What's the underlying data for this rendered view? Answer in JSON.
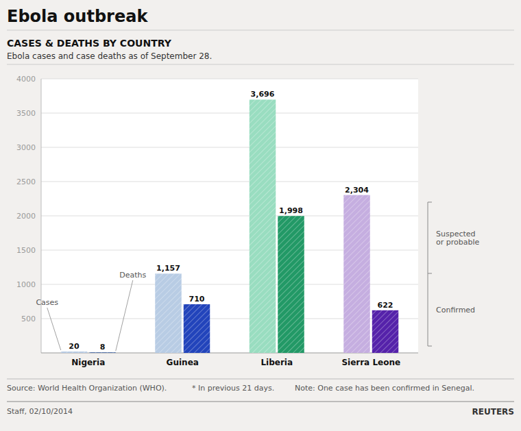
{
  "title": "Ebola outbreak",
  "footer": [
    "Source: World Health Organization (WHO).",
    "* In previous 21 days.",
    "Note: One case has been confirmed in Senegal.",
    "Staff, 02/10/2014",
    "REUTERS"
  ],
  "chart_data": {
    "type": "bar",
    "title": "CASES & DEATHS BY COUNTRY",
    "subtitle": "Ebola cases and case deaths as of September 28.",
    "categories": [
      "Nigeria",
      "Guinea",
      "Liberia",
      "Sierra Leone"
    ],
    "series": [
      {
        "name": "Cases",
        "values": [
          20,
          1157,
          3696,
          2304
        ],
        "value_labels": [
          "20",
          "1,157",
          "3,696",
          "2,304"
        ],
        "colors": [
          "#b8cce4",
          "#b8cce4",
          "#99ddc0",
          "#c5aee0"
        ]
      },
      {
        "name": "Deaths",
        "values": [
          8,
          710,
          1998,
          622
        ],
        "value_labels": [
          "8",
          "710",
          "1,998",
          "622"
        ],
        "colors": [
          "#3a5fa0",
          "#2244bb",
          "#229966",
          "#5522aa"
        ]
      }
    ],
    "annotations": [
      "Suspected\nor probable",
      "Confirmed"
    ],
    "ylim": [
      0,
      4000
    ],
    "yticks": [
      500,
      1000,
      1500,
      2000,
      2500,
      3000,
      3500,
      4000
    ],
    "grid": true,
    "data_labels": true
  }
}
